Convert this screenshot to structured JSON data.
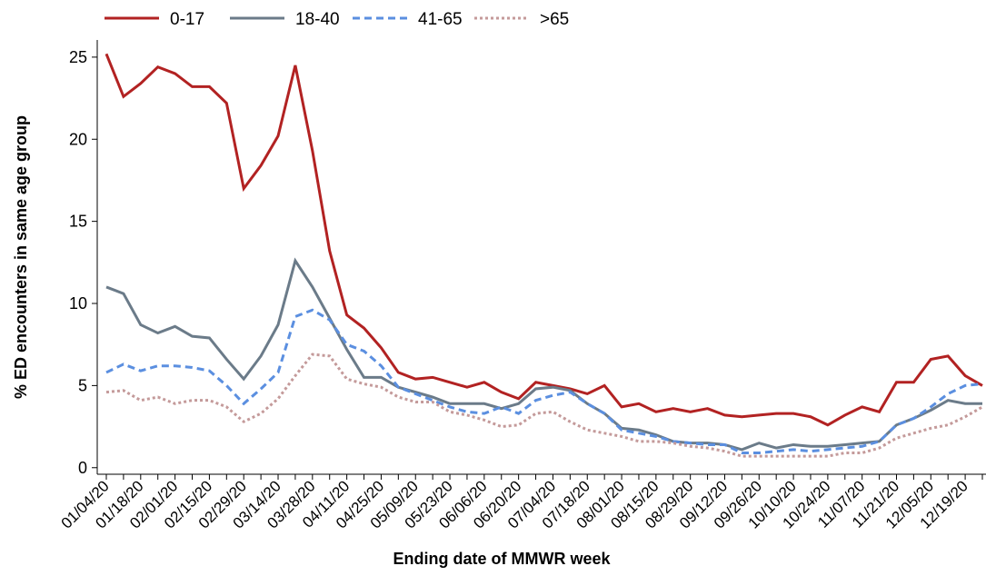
{
  "chart_data": {
    "type": "line",
    "x_label": "Ending date of MMWR week",
    "y_label": "% ED encounters in same age group",
    "categories": [
      "01/04/20",
      null,
      "01/18/20",
      null,
      "02/01/20",
      null,
      "02/15/20",
      null,
      "02/29/20",
      null,
      "03/14/20",
      null,
      "03/28/20",
      null,
      "04/11/20",
      null,
      "04/25/20",
      null,
      "05/09/20",
      null,
      "05/23/20",
      null,
      "06/06/20",
      null,
      "06/20/20",
      null,
      "07/04/20",
      null,
      "07/18/20",
      null,
      "08/01/20",
      null,
      "08/15/20",
      null,
      "08/29/20",
      null,
      "09/12/20",
      null,
      "09/26/20",
      null,
      "10/10/20",
      null,
      "10/24/20",
      null,
      "11/07/20",
      null,
      "11/21/20",
      null,
      "12/05/20",
      null,
      "12/19/20",
      null
    ],
    "series": [
      {
        "name": "0-17",
        "color": "#b22222",
        "style": "solid",
        "values": [
          25.2,
          22.6,
          23.4,
          24.4,
          24.0,
          23.2,
          23.2,
          22.2,
          17.0,
          18.4,
          20.2,
          24.5,
          19.3,
          13.2,
          9.3,
          8.5,
          7.3,
          5.8,
          5.4,
          5.5,
          5.2,
          4.9,
          5.2,
          4.6,
          4.2,
          5.2,
          5.0,
          4.8,
          4.5,
          5.0,
          3.7,
          3.9,
          3.4,
          3.6,
          3.4,
          3.6,
          3.2,
          3.1,
          3.2,
          3.3,
          3.3,
          3.1,
          2.6,
          3.2,
          3.7,
          3.4,
          5.2,
          5.2,
          6.6,
          6.8,
          5.6,
          5.0
        ]
      },
      {
        "name": "18-40",
        "color": "#6b7b89",
        "style": "solid",
        "values": [
          11.0,
          10.6,
          8.7,
          8.2,
          8.6,
          8.0,
          7.9,
          6.6,
          5.4,
          6.8,
          8.7,
          12.6,
          11.0,
          9.1,
          7.2,
          5.5,
          5.5,
          4.9,
          4.6,
          4.3,
          3.9,
          3.9,
          3.9,
          3.6,
          3.9,
          4.8,
          4.9,
          4.7,
          3.9,
          3.3,
          2.4,
          2.3,
          2.0,
          1.6,
          1.5,
          1.5,
          1.4,
          1.1,
          1.5,
          1.2,
          1.4,
          1.3,
          1.3,
          1.4,
          1.5,
          1.6,
          2.6,
          3.0,
          3.5,
          4.1,
          3.9,
          3.9
        ]
      },
      {
        "name": "41-65",
        "color": "#5b8fe0",
        "style": "dashed",
        "values": [
          5.8,
          6.3,
          5.9,
          6.2,
          6.2,
          6.1,
          5.9,
          5.0,
          3.9,
          4.8,
          5.8,
          9.2,
          9.6,
          9.0,
          7.5,
          7.1,
          6.2,
          4.9,
          4.5,
          4.1,
          3.7,
          3.4,
          3.3,
          3.7,
          3.3,
          4.1,
          4.4,
          4.6,
          3.9,
          3.3,
          2.3,
          2.1,
          1.9,
          1.6,
          1.5,
          1.4,
          1.4,
          0.9,
          0.9,
          1.0,
          1.1,
          1.0,
          1.1,
          1.2,
          1.3,
          1.6,
          2.6,
          3.0,
          3.7,
          4.5,
          5.0,
          5.1
        ]
      },
      {
        "name": ">65",
        "color": "#c49a9a",
        "style": "dotted",
        "values": [
          4.6,
          4.7,
          4.1,
          4.3,
          3.9,
          4.1,
          4.1,
          3.7,
          2.8,
          3.3,
          4.2,
          5.6,
          6.9,
          6.8,
          5.4,
          5.1,
          4.9,
          4.3,
          4.0,
          4.0,
          3.4,
          3.2,
          2.9,
          2.5,
          2.6,
          3.3,
          3.4,
          2.8,
          2.3,
          2.1,
          1.9,
          1.6,
          1.6,
          1.5,
          1.3,
          1.2,
          1.0,
          0.7,
          0.7,
          0.7,
          0.7,
          0.7,
          0.7,
          0.9,
          0.9,
          1.2,
          1.8,
          2.1,
          2.4,
          2.6,
          3.1,
          3.7
        ]
      }
    ],
    "ylim": [
      -0.4,
      26.1
    ],
    "yticks": [
      0,
      5,
      10,
      15,
      20,
      25
    ],
    "grid": false,
    "legend": "top"
  }
}
